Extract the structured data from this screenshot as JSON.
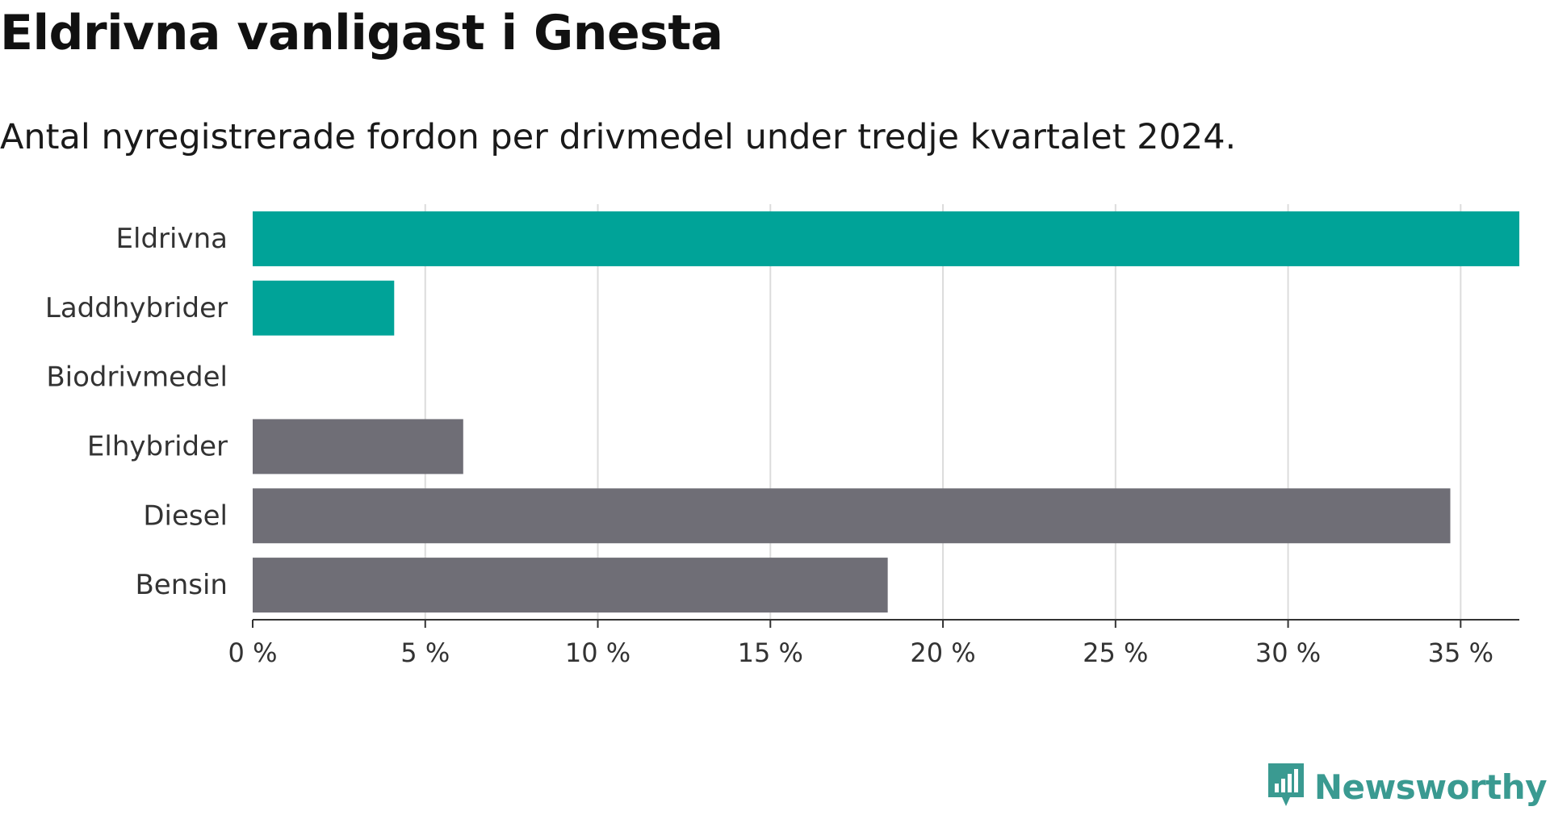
{
  "title": "Eldrivna vanligast i Gnesta",
  "subtitle": "Antal nyregistrerade fordon per drivmedel under tredje kvartalet 2024.",
  "brand": {
    "name": "Newsworthy",
    "icon": "newsworthy-logo-icon",
    "color": "#3a9a91"
  },
  "colors": {
    "highlight": "#00a398",
    "other": "#6f6e76",
    "grid": "#dcdcdc",
    "axis": "#333333"
  },
  "chart_data": {
    "type": "bar",
    "orientation": "horizontal",
    "categories": [
      "Eldrivna",
      "Laddhybrider",
      "Biodrivmedel",
      "Elhybrider",
      "Diesel",
      "Bensin"
    ],
    "values": [
      36.7,
      4.1,
      0,
      6.1,
      34.7,
      18.4
    ],
    "highlighted": [
      true,
      true,
      false,
      false,
      false,
      false
    ],
    "xlim": [
      0,
      36.7
    ],
    "xticks": [
      0,
      5,
      10,
      15,
      20,
      25,
      30,
      35
    ],
    "xtick_labels": [
      "0 %",
      "5 %",
      "10 %",
      "15 %",
      "20 %",
      "25 %",
      "30 %",
      "35 %"
    ],
    "grid": true
  }
}
